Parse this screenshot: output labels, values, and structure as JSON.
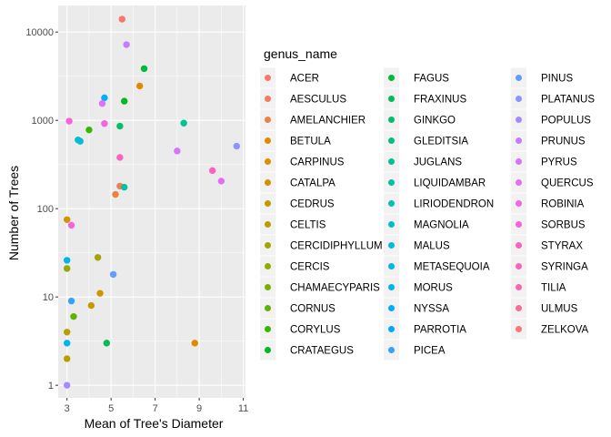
{
  "chart_data": {
    "type": "scatter",
    "xlabel": "Mean of Tree's Diameter",
    "ylabel": "Number of Trees",
    "x_ticks": [
      3,
      5,
      7,
      9,
      11
    ],
    "y_ticks": [
      1,
      10,
      100,
      1000,
      10000
    ],
    "y_tick_labels": [
      "1",
      "10",
      "100",
      "1000",
      "10000"
    ],
    "y_scale": "log10",
    "xlim": [
      2.6,
      11.1
    ],
    "ylim": [
      0.72,
      20000
    ],
    "grid": true,
    "legend": {
      "title": "genus_name",
      "placement": "right"
    },
    "series": [
      {
        "name": "ACER",
        "color": "#F8766D",
        "points": [
          [
            5.5,
            14000
          ]
        ]
      },
      {
        "name": "AESCULUS",
        "color": "#F37B59",
        "points": [
          [
            5.4,
            180
          ]
        ]
      },
      {
        "name": "AMELANCHIER",
        "color": "#ED8141",
        "points": [
          [
            5.2,
            145
          ]
        ]
      },
      {
        "name": "BETULA",
        "color": "#E38900",
        "points": [
          [
            6.3,
            2450
          ]
        ]
      },
      {
        "name": "CARPINUS",
        "color": "#DE8C00",
        "points": [
          [
            8.8,
            3
          ]
        ]
      },
      {
        "name": "CATALPA",
        "color": "#D49200",
        "points": [
          [
            3.0,
            75
          ],
          [
            4.5,
            11
          ]
        ]
      },
      {
        "name": "CEDRUS",
        "color": "#C59900",
        "points": [
          [
            4.1,
            8
          ]
        ]
      },
      {
        "name": "CELTIS",
        "color": "#B79F00",
        "points": [
          [
            3.0,
            4
          ],
          [
            3.0,
            2
          ]
        ]
      },
      {
        "name": "CERCIDIPHYLLUM",
        "color": "#A3A500",
        "points": [
          [
            4.4,
            28
          ]
        ]
      },
      {
        "name": "CERCIS",
        "color": "#93AA00",
        "points": [
          [
            3.0,
            21
          ]
        ]
      },
      {
        "name": "CHAMAECYPARIS",
        "color": "#7CAE00",
        "points": []
      },
      {
        "name": "CORNUS",
        "color": "#5EB300",
        "points": [
          [
            3.3,
            6
          ]
        ]
      },
      {
        "name": "CORYLUS",
        "color": "#39B600",
        "points": [
          [
            4.0,
            780
          ]
        ]
      },
      {
        "name": "CRATAEGUS",
        "color": "#00B81F",
        "points": [
          [
            5.6,
            1650
          ]
        ]
      },
      {
        "name": "FAGUS",
        "color": "#00BA38",
        "points": [
          [
            6.5,
            3850
          ]
        ]
      },
      {
        "name": "FRAXINUS",
        "color": "#00BC56",
        "points": [
          [
            4.8,
            3
          ]
        ]
      },
      {
        "name": "GINKGO",
        "color": "#00BE6C",
        "points": [
          [
            5.4,
            860
          ]
        ]
      },
      {
        "name": "GLEDITSIA",
        "color": "#00BF7D",
        "points": []
      },
      {
        "name": "JUGLANS",
        "color": "#00C094",
        "points": [
          [
            8.3,
            930
          ]
        ]
      },
      {
        "name": "LIQUIDAMBAR",
        "color": "#00C1A3",
        "points": [
          [
            5.6,
            175
          ]
        ]
      },
      {
        "name": "LIRIODENDRON",
        "color": "#00C0B8",
        "points": []
      },
      {
        "name": "MAGNOLIA",
        "color": "#00BFC4",
        "points": [
          [
            3.5,
            600
          ]
        ]
      },
      {
        "name": "MALUS",
        "color": "#00BCD8",
        "points": [
          [
            3.6,
            580
          ]
        ]
      },
      {
        "name": "METASEQUOIA",
        "color": "#00B8E7",
        "points": []
      },
      {
        "name": "MORUS",
        "color": "#00B4F0",
        "points": [
          [
            3.0,
            3
          ],
          [
            3.0,
            26
          ]
        ]
      },
      {
        "name": "NYSSA",
        "color": "#00ADFA",
        "points": [
          [
            4.7,
            1800
          ]
        ]
      },
      {
        "name": "PARROTIA",
        "color": "#00A9FF",
        "points": []
      },
      {
        "name": "PICEA",
        "color": "#35A2FF",
        "points": [
          [
            3.2,
            9
          ]
        ]
      },
      {
        "name": "PINUS",
        "color": "#619CFF",
        "points": [
          [
            5.1,
            18
          ]
        ]
      },
      {
        "name": "PLATANUS",
        "color": "#8B93FF",
        "points": [
          [
            10.7,
            510
          ]
        ]
      },
      {
        "name": "POPULUS",
        "color": "#A58AFF",
        "points": [
          [
            3.0,
            1
          ]
        ]
      },
      {
        "name": "PRUNUS",
        "color": "#C77CFF",
        "points": [
          [
            5.7,
            7200
          ]
        ]
      },
      {
        "name": "PYRUS",
        "color": "#DB72FB",
        "points": [
          [
            4.6,
            1550
          ],
          [
            8.0,
            450
          ]
        ]
      },
      {
        "name": "QUERCUS",
        "color": "#E76BF3",
        "points": [
          [
            10.0,
            205
          ]
        ]
      },
      {
        "name": "ROBINIA",
        "color": "#F564E3",
        "points": [
          [
            4.7,
            920
          ]
        ]
      },
      {
        "name": "SORBUS",
        "color": "#FA62DB",
        "points": [
          [
            3.1,
            980
          ],
          [
            3.2,
            65
          ]
        ]
      },
      {
        "name": "STYRAX",
        "color": "#FF61C3",
        "points": [
          [
            5.4,
            380
          ]
        ]
      },
      {
        "name": "SYRINGA",
        "color": "#FF62BC",
        "points": [
          [
            9.6,
            270
          ]
        ]
      },
      {
        "name": "TILIA",
        "color": "#FF65AE",
        "points": []
      },
      {
        "name": "ULMUS",
        "color": "#FD6C96",
        "points": []
      },
      {
        "name": "ZELKOVA",
        "color": "#F8767D",
        "points": []
      }
    ]
  }
}
